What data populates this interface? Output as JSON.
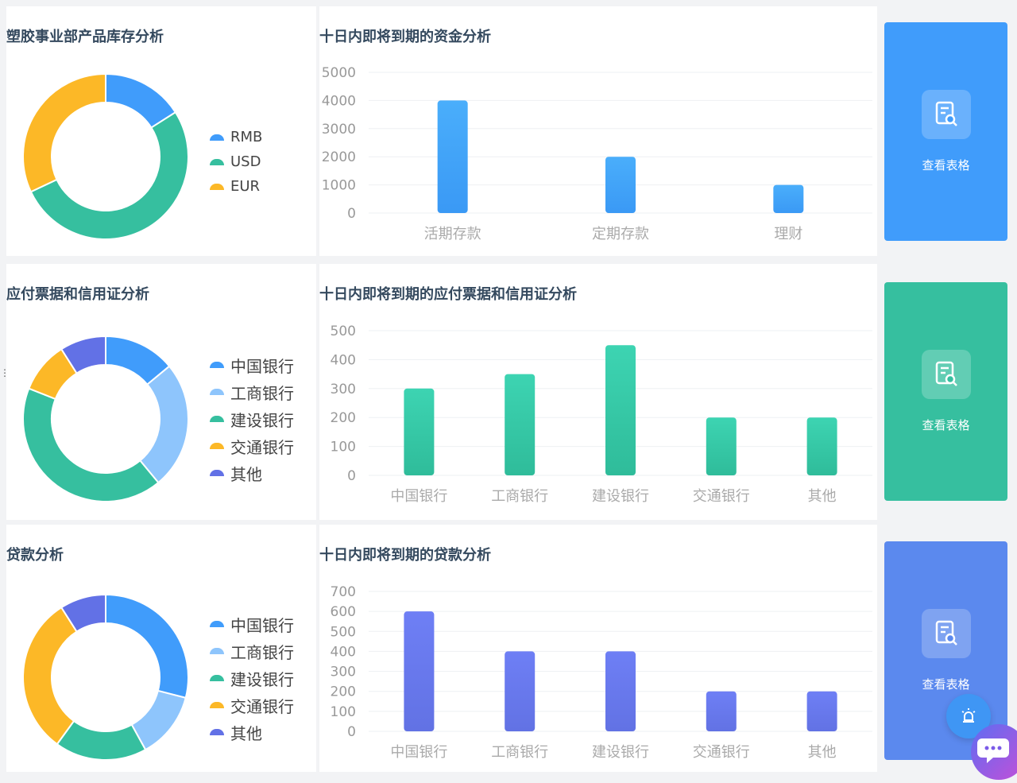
{
  "sections": [
    {
      "donut_title": "塑胶事业部产品库存分析",
      "bar_title": "十日内即将到期的资金分析",
      "button_label": "查看表格",
      "button_color": "#409cfb"
    },
    {
      "donut_title": "应付票据和信用证分析",
      "bar_title": "十日内即将到期的应付票据和信用证分析",
      "button_label": "查看表格",
      "button_color": "#36bf9f"
    },
    {
      "donut_title": "贷款分析",
      "bar_title": "十日内即将到期的贷款分析",
      "button_label": "查看表格",
      "button_color": "#5b89ee"
    }
  ],
  "chart_data": [
    {
      "type": "pie",
      "variant": "donut",
      "title": "塑胶事业部产品库存分析",
      "categories": [
        "RMB",
        "USD",
        "EUR"
      ],
      "values": [
        16,
        52,
        32
      ],
      "colors": [
        "#409cfb",
        "#36bf9f",
        "#fcb827"
      ],
      "legend": "right"
    },
    {
      "type": "bar",
      "title": "十日内即将到期的资金分析",
      "categories": [
        "活期存款",
        "定期存款",
        "理财"
      ],
      "values": [
        4000,
        2000,
        1000
      ],
      "ylim": [
        0,
        5000
      ],
      "yticks": [
        0,
        1000,
        2000,
        3000,
        4000,
        5000
      ],
      "color_top": "#4aaefb",
      "color_bottom": "#3a99f5",
      "grid": true
    },
    {
      "type": "pie",
      "variant": "donut",
      "title": "应付票据和信用证分析",
      "categories": [
        "中国银行",
        "工商银行",
        "建设银行",
        "交通银行",
        "其他"
      ],
      "values": [
        14,
        25,
        42,
        10,
        9
      ],
      "colors": [
        "#409cfb",
        "#8ec5fc",
        "#36bf9f",
        "#fcb827",
        "#6271e6"
      ],
      "legend": "right"
    },
    {
      "type": "bar",
      "title": "十日内即将到期的应付票据和信用证分析",
      "categories": [
        "中国银行",
        "工商银行",
        "建设银行",
        "交通银行",
        "其他"
      ],
      "values": [
        300,
        350,
        450,
        200,
        200
      ],
      "ylim": [
        0,
        500
      ],
      "yticks": [
        0,
        100,
        200,
        300,
        400,
        500
      ],
      "color_top": "#3dd4b2",
      "color_bottom": "#2fbc9a",
      "grid": true
    },
    {
      "type": "pie",
      "variant": "donut",
      "title": "贷款分析",
      "categories": [
        "中国银行",
        "工商银行",
        "建设银行",
        "交通银行",
        "其他"
      ],
      "values": [
        29,
        13,
        18,
        31,
        9
      ],
      "colors": [
        "#409cfb",
        "#8ec5fc",
        "#36bf9f",
        "#fcb827",
        "#6271e6"
      ],
      "legend": "right"
    },
    {
      "type": "bar",
      "title": "十日内即将到期的贷款分析",
      "categories": [
        "中国银行",
        "工商银行",
        "建设银行",
        "交通银行",
        "其他"
      ],
      "values": [
        600,
        400,
        400,
        200,
        200
      ],
      "ylim": [
        0,
        700
      ],
      "yticks": [
        0,
        100,
        200,
        300,
        400,
        500,
        600,
        700
      ],
      "color_top": "#6e7ff5",
      "color_bottom": "#6272e4",
      "grid": true
    }
  ],
  "floating": {
    "bell_icon": "alarm-bell-icon",
    "chat_icon": "chat-assistant-icon"
  }
}
